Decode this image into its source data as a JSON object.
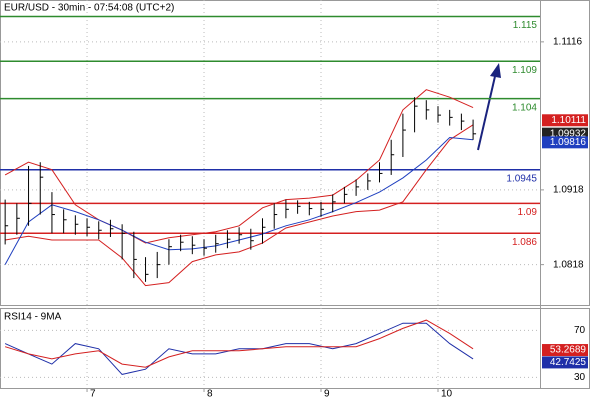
{
  "chart_data": {
    "type": "candlestick",
    "title": "EUR/USD - 30min - 07:54:08 (UTC+2)",
    "x": [
      6.3,
      6.4,
      6.5,
      6.6,
      6.7,
      6.8,
      6.9,
      7.0,
      7.1,
      7.2,
      7.3,
      7.4,
      7.5,
      7.6,
      7.7,
      7.8,
      7.9,
      8.0,
      8.1,
      8.2,
      8.3,
      8.4,
      8.5,
      8.6,
      8.7,
      8.8,
      8.9,
      9.0,
      9.1,
      9.2,
      9.3,
      9.4,
      9.5,
      9.6,
      9.7,
      9.8,
      9.9,
      10.0,
      10.1,
      10.2,
      10.3
    ],
    "high": [
      1.0905,
      1.09,
      1.095,
      1.0955,
      1.0915,
      1.0892,
      1.0884,
      1.088,
      1.0876,
      1.0878,
      1.0872,
      1.0862,
      1.0828,
      1.0835,
      1.0852,
      1.0858,
      1.0856,
      1.0852,
      1.0858,
      1.0864,
      1.0868,
      1.0866,
      1.088,
      1.09,
      1.0905,
      1.0904,
      1.0902,
      1.0902,
      1.0912,
      1.0922,
      1.0932,
      1.094,
      1.0955,
      1.0985,
      1.102,
      1.1042,
      1.1038,
      1.103,
      1.1025,
      1.102,
      1.1012
    ],
    "low": [
      1.0845,
      1.0858,
      1.087,
      1.0885,
      1.086,
      1.086,
      1.0858,
      1.0856,
      1.0852,
      1.0855,
      1.0825,
      1.08,
      1.0795,
      1.08,
      1.0818,
      1.0836,
      1.0832,
      1.083,
      1.0834,
      1.084,
      1.0846,
      1.0838,
      1.0846,
      1.0866,
      1.088,
      1.0886,
      1.0884,
      1.0882,
      1.0888,
      1.09,
      1.091,
      1.0918,
      1.0928,
      1.0938,
      1.0962,
      1.0995,
      1.1012,
      1.1008,
      1.1004,
      1.0998,
      1.0985
    ],
    "close": [
      1.087,
      1.088,
      1.09,
      1.0935,
      1.0885,
      1.0878,
      1.0872,
      1.0868,
      1.0864,
      1.0866,
      1.086,
      1.0825,
      1.0805,
      1.0818,
      1.0842,
      1.0848,
      1.0844,
      1.084,
      1.0846,
      1.0852,
      1.0858,
      1.085,
      1.0868,
      1.0885,
      1.0892,
      1.0896,
      1.0893,
      1.0892,
      1.0902,
      1.0912,
      1.0922,
      1.093,
      1.094,
      1.0965,
      1.0998,
      1.103,
      1.1025,
      1.1018,
      1.1015,
      1.101,
      1.0993
    ],
    "color": "#000000",
    "xlim": [
      6.256,
      10.872
    ],
    "xticks": [
      7,
      8,
      9,
      10
    ],
    "ylim": [
      1.0764,
      1.1172
    ],
    "yticks": [
      1.1116,
      1.0918,
      1.0818
    ],
    "grid": true,
    "indicator_x": [
      6.3,
      6.5,
      6.7,
      6.9,
      7.1,
      7.3,
      7.5,
      7.7,
      7.9,
      8.1,
      8.3,
      8.5,
      8.7,
      8.9,
      9.1,
      9.3,
      9.5,
      9.7,
      9.9,
      10.1,
      10.3
    ],
    "overlays": [
      {
        "color": "#d42020",
        "values": [
          1.0938,
          1.0955,
          1.0945,
          1.0898,
          1.0878,
          1.0864,
          1.0847,
          1.0854,
          1.0858,
          1.0862,
          1.087,
          1.0894,
          1.0905,
          1.0907,
          1.0911,
          1.0931,
          1.0958,
          1.1025,
          1.1052,
          1.1042,
          1.1028
        ]
      },
      {
        "color": "#d42020",
        "values": [
          1.0851,
          1.0856,
          1.0851,
          1.0851,
          1.0851,
          1.0827,
          1.079,
          1.0794,
          1.0822,
          1.0831,
          1.0835,
          1.0847,
          1.0867,
          1.0875,
          1.0883,
          1.0889,
          1.0891,
          1.0902,
          1.0945,
          1.0985,
          1.1005
        ]
      },
      {
        "color": "#1f3fbf",
        "values": [
          1.0818,
          1.0875,
          1.0898,
          1.0889,
          1.0878,
          1.0864,
          1.0848,
          1.0838,
          1.0839,
          1.0843,
          1.0851,
          1.0859,
          1.087,
          1.0878,
          1.0889,
          1.0901,
          1.0915,
          1.0934,
          1.0958,
          1.0988,
          1.0985
        ]
      }
    ],
    "levels": [
      {
        "value": 1.115,
        "color": "#2e8b2e"
      },
      {
        "value": 1.109,
        "color": "#2e8b2e"
      },
      {
        "value": 1.104,
        "color": "#2e8b2e"
      },
      {
        "value": 1.0945,
        "color": "#1f2fa8"
      },
      {
        "value": 1.09,
        "color": "#d42020"
      },
      {
        "value": 1.086,
        "color": "#d42020"
      }
    ],
    "price_labels": [
      {
        "value": 1.10111,
        "color": "#d42020"
      },
      {
        "value": 1.09932,
        "color": "#222222"
      },
      {
        "value": 1.09816,
        "color": "#1f3fbf"
      }
    ],
    "rsi": {
      "title": "RSI14 - 9MA",
      "ylim": [
        21,
        89
      ],
      "yticks": [
        70,
        30
      ],
      "series": [
        {
          "color": "#1f2fa8",
          "values": [
            58.7,
            50,
            41.3,
            58.7,
            54.3,
            32.6,
            37,
            54.3,
            50,
            50,
            54.3,
            54.3,
            58.7,
            58.7,
            54.3,
            58.7,
            67.4,
            76.1,
            76.1,
            58.7,
            45.7
          ]
        },
        {
          "color": "#d42020",
          "values": [
            56.1,
            50,
            45.7,
            50,
            52.6,
            41.3,
            38.7,
            47.4,
            52.6,
            52.6,
            52.6,
            54.3,
            56.1,
            56.1,
            56.1,
            56.1,
            63,
            71.7,
            78.7,
            67.4,
            54.3
          ]
        }
      ],
      "price_labels": [
        {
          "value": 53.2689,
          "color": "#d42020"
        },
        {
          "value": 42.7425,
          "color": "#1f2fa8"
        }
      ]
    }
  }
}
